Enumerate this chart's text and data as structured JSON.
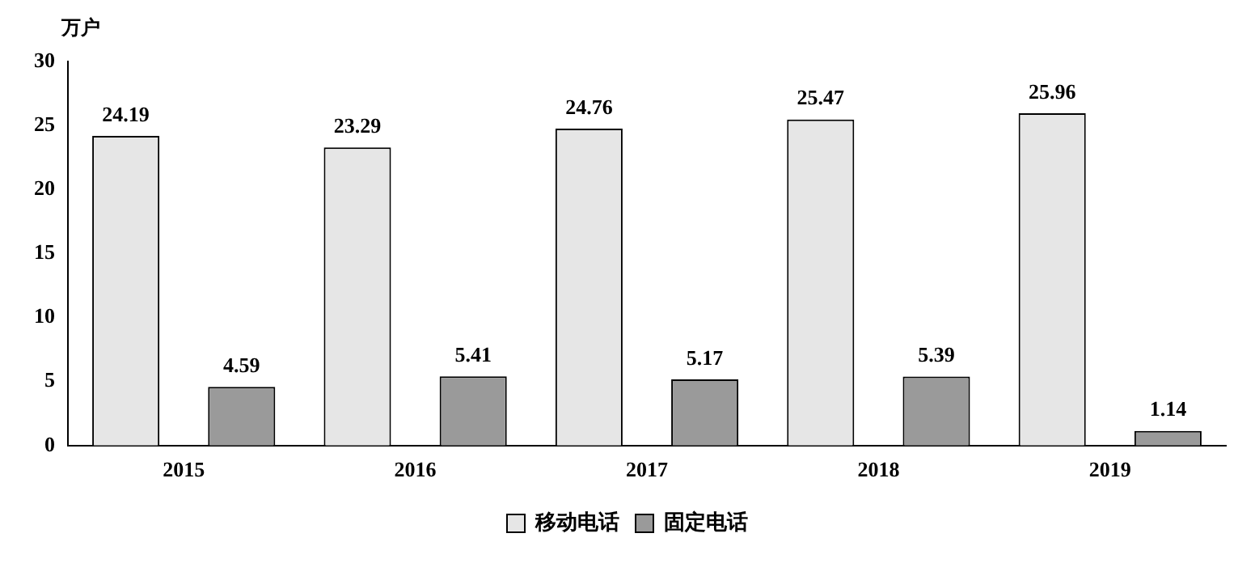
{
  "chart_data": {
    "type": "bar",
    "ylabel": "万户",
    "categories": [
      "2015",
      "2016",
      "2017",
      "2018",
      "2019"
    ],
    "series": [
      {
        "name": "移动电话",
        "color": "#e6e6e6",
        "values": [
          24.19,
          23.29,
          24.76,
          25.47,
          25.96
        ]
      },
      {
        "name": "固定电话",
        "color": "#9a9a9a",
        "values": [
          4.59,
          5.41,
          5.17,
          5.39,
          1.14
        ]
      }
    ],
    "ylim": [
      0,
      30
    ],
    "yticks": [
      0,
      5,
      10,
      15,
      20,
      25,
      30
    ],
    "data_labels": true,
    "grid": false,
    "legend": "bottom"
  }
}
